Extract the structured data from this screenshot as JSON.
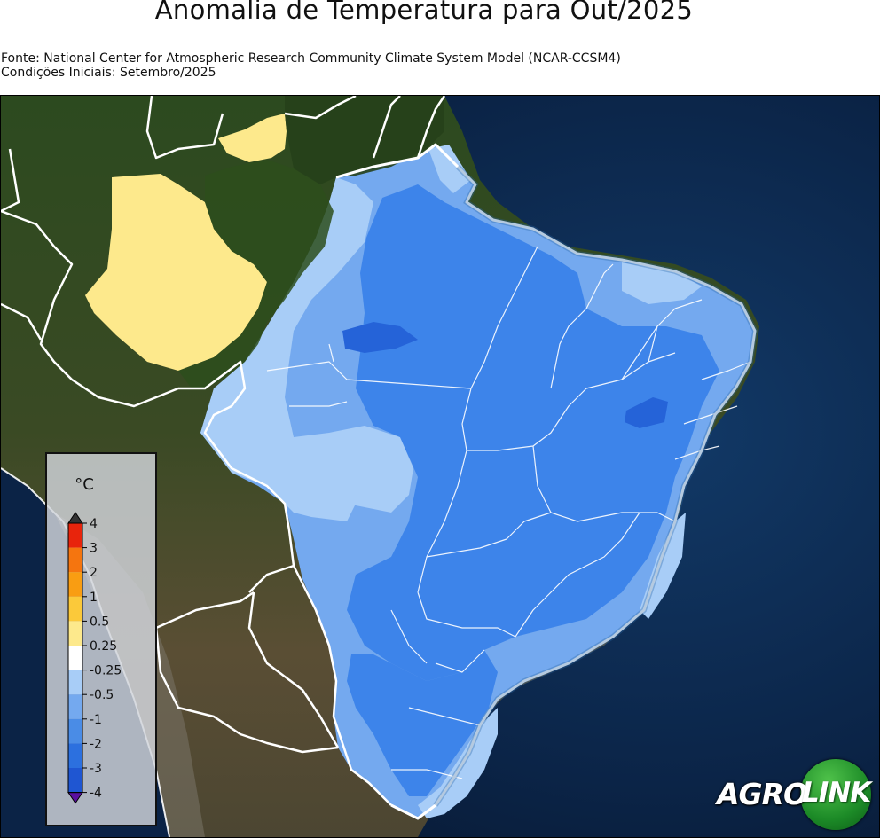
{
  "title": "Anomalia de Temperatura para Out/2025",
  "source_line": "Fonte: National Center for Atmospheric Research Community Climate System Model (NCAR-CCSM4)",
  "conditions_line": "Condições Iniciais: Setembro/2025",
  "legend": {
    "unit": "°C",
    "ticks": [
      "4",
      "3",
      "2",
      "1",
      "0.5",
      "0.25",
      "-0.25",
      "-0.5",
      "-1",
      "-2",
      "-3",
      "-4"
    ],
    "colors": [
      "#e8240c",
      "#f5750f",
      "#f99d12",
      "#fbc93a",
      "#fde98c",
      "#ffffff",
      "#a8cdf7",
      "#74a9ef",
      "#4a8ce6",
      "#2c70df",
      "#1f56d2"
    ],
    "over_color": "#333333",
    "under_color": "#5a0fa0"
  },
  "map_colors": {
    "anom_pos_0_25_0_5": "#fde98c",
    "anom_neg_0_25_0_5": "#a8cdf7",
    "anom_neg_0_5_1": "#74a9ef",
    "anom_neg_1_2": "#3d84ea",
    "anom_neg_2_3": "#2563d8",
    "ocean": "#0a1e3c",
    "forest": "#2f4a1c",
    "land_dry": "#4a4430"
  },
  "logo": {
    "left": "AGRO",
    "right": "LINK"
  }
}
